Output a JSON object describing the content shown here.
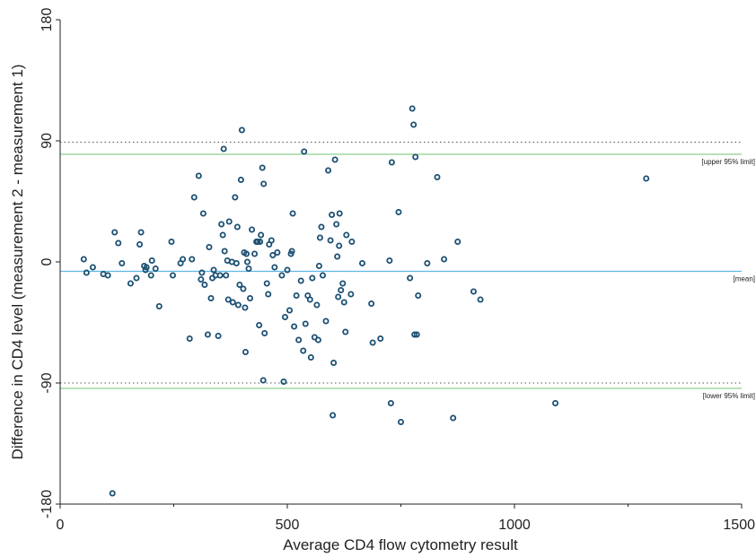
{
  "chart_data": {
    "type": "scatter",
    "title": "",
    "xlabel": "Average CD4 flow cytometry result",
    "ylabel": "Difference in CD4 level (measurement 2 - measurement 1)",
    "xlim": [
      0,
      1500
    ],
    "ylim": [
      -180,
      180
    ],
    "xticks": [
      0,
      500,
      1000,
      1500
    ],
    "xtick_labels": [
      "0",
      "500",
      "1000",
      "1500"
    ],
    "yticks": [
      -180,
      -90,
      0,
      90,
      180
    ],
    "ytick_labels": [
      "-180",
      "-90",
      "0",
      "90",
      "180"
    ],
    "grid": false,
    "reference_lines": [
      {
        "value": 89,
        "style": "dotted",
        "color": "#555555"
      },
      {
        "value": -90,
        "style": "dotted",
        "color": "#555555"
      },
      {
        "value": 80,
        "style": "solid",
        "color": "#8dd18d",
        "label": "[upper 95% limit]"
      },
      {
        "value": -7,
        "style": "solid",
        "color": "#5fb7e5",
        "label": "[mean]"
      },
      {
        "value": -94,
        "style": "solid",
        "color": "#8dd18d",
        "label": "[lower 95% limit]"
      }
    ],
    "marker_color": "#1b4f72",
    "points": [
      [
        52,
        2
      ],
      [
        58,
        -8
      ],
      [
        72,
        -4
      ],
      [
        95,
        -9
      ],
      [
        105,
        -10
      ],
      [
        115,
        -172
      ],
      [
        120,
        22
      ],
      [
        128,
        14
      ],
      [
        136,
        -1
      ],
      [
        155,
        -16
      ],
      [
        168,
        -12
      ],
      [
        175,
        13
      ],
      [
        178,
        22
      ],
      [
        185,
        -3
      ],
      [
        188,
        -6
      ],
      [
        190,
        -4
      ],
      [
        200,
        -10
      ],
      [
        202,
        1
      ],
      [
        210,
        -5
      ],
      [
        218,
        -33
      ],
      [
        245,
        15
      ],
      [
        248,
        -10
      ],
      [
        265,
        -1
      ],
      [
        270,
        2
      ],
      [
        285,
        -57
      ],
      [
        290,
        2
      ],
      [
        295,
        48
      ],
      [
        305,
        64
      ],
      [
        310,
        -13
      ],
      [
        312,
        -8
      ],
      [
        315,
        36
      ],
      [
        318,
        -17
      ],
      [
        325,
        -54
      ],
      [
        328,
        11
      ],
      [
        332,
        -27
      ],
      [
        335,
        -12
      ],
      [
        338,
        -6
      ],
      [
        342,
        -10
      ],
      [
        348,
        -55
      ],
      [
        352,
        -10
      ],
      [
        355,
        28
      ],
      [
        358,
        20
      ],
      [
        360,
        84
      ],
      [
        362,
        8
      ],
      [
        365,
        -10
      ],
      [
        368,
        1
      ],
      [
        370,
        -28
      ],
      [
        372,
        30
      ],
      [
        378,
        0
      ],
      [
        380,
        -30
      ],
      [
        385,
        48
      ],
      [
        388,
        -1
      ],
      [
        390,
        26
      ],
      [
        392,
        -32
      ],
      [
        395,
        -17
      ],
      [
        398,
        61
      ],
      [
        400,
        98
      ],
      [
        403,
        -20
      ],
      [
        405,
        7
      ],
      [
        407,
        -34
      ],
      [
        408,
        -67
      ],
      [
        410,
        6
      ],
      [
        412,
        0
      ],
      [
        415,
        -5
      ],
      [
        418,
        -27
      ],
      [
        422,
        24
      ],
      [
        428,
        6
      ],
      [
        432,
        15
      ],
      [
        435,
        15
      ],
      [
        438,
        -47
      ],
      [
        440,
        15
      ],
      [
        442,
        20
      ],
      [
        445,
        70
      ],
      [
        447,
        -88
      ],
      [
        448,
        58
      ],
      [
        450,
        -53
      ],
      [
        455,
        -16
      ],
      [
        458,
        -24
      ],
      [
        460,
        13
      ],
      [
        465,
        16
      ],
      [
        468,
        5
      ],
      [
        472,
        -4
      ],
      [
        478,
        7
      ],
      [
        488,
        -10
      ],
      [
        492,
        -89
      ],
      [
        495,
        -41
      ],
      [
        500,
        -6
      ],
      [
        505,
        -36
      ],
      [
        508,
        6
      ],
      [
        510,
        8
      ],
      [
        512,
        36
      ],
      [
        515,
        -48
      ],
      [
        520,
        -25
      ],
      [
        525,
        -58
      ],
      [
        530,
        -14
      ],
      [
        535,
        -66
      ],
      [
        537,
        82
      ],
      [
        540,
        -46
      ],
      [
        545,
        -25
      ],
      [
        550,
        -28
      ],
      [
        552,
        -71
      ],
      [
        555,
        -12
      ],
      [
        560,
        -56
      ],
      [
        565,
        -32
      ],
      [
        568,
        -58
      ],
      [
        570,
        -3
      ],
      [
        572,
        18
      ],
      [
        575,
        26
      ],
      [
        578,
        -10
      ],
      [
        585,
        -44
      ],
      [
        590,
        68
      ],
      [
        595,
        16
      ],
      [
        598,
        35
      ],
      [
        600,
        -114
      ],
      [
        602,
        -75
      ],
      [
        605,
        76
      ],
      [
        608,
        28
      ],
      [
        610,
        4
      ],
      [
        612,
        -26
      ],
      [
        614,
        12
      ],
      [
        615,
        36
      ],
      [
        618,
        -21
      ],
      [
        622,
        -16
      ],
      [
        625,
        -30
      ],
      [
        628,
        -52
      ],
      [
        630,
        20
      ],
      [
        640,
        -24
      ],
      [
        642,
        15
      ],
      [
        665,
        -1
      ],
      [
        685,
        -31
      ],
      [
        688,
        -60
      ],
      [
        705,
        -57
      ],
      [
        725,
        1
      ],
      [
        728,
        -105
      ],
      [
        730,
        74
      ],
      [
        745,
        37
      ],
      [
        750,
        -119
      ],
      [
        770,
        -12
      ],
      [
        775,
        114
      ],
      [
        778,
        102
      ],
      [
        780,
        -54
      ],
      [
        782,
        78
      ],
      [
        785,
        -54
      ],
      [
        788,
        -25
      ],
      [
        808,
        -1
      ],
      [
        830,
        63
      ],
      [
        845,
        2
      ],
      [
        865,
        -116
      ],
      [
        875,
        15
      ],
      [
        910,
        -22
      ],
      [
        925,
        -28
      ],
      [
        1090,
        -105
      ],
      [
        1290,
        62
      ]
    ]
  }
}
